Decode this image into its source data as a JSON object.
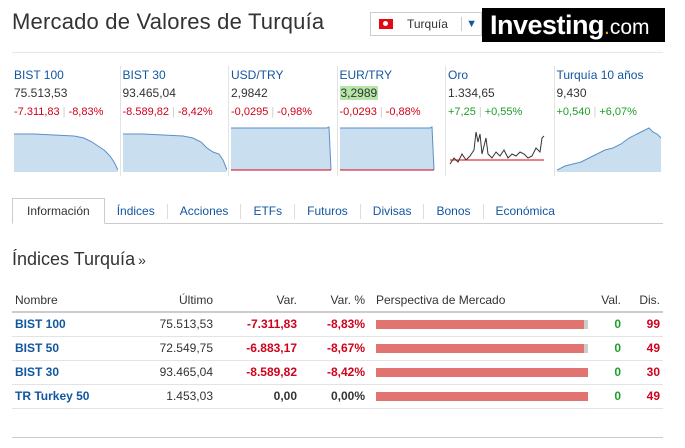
{
  "header": {
    "title": "Mercado de Valores de Turquía",
    "country": "Turquía",
    "logo_main": "Investing",
    "logo_suffix": "com"
  },
  "tiles": [
    {
      "name": "BIST 100",
      "value": "75.513,53",
      "change": "-7.311,83",
      "pct": "-8,83%",
      "direction": "down"
    },
    {
      "name": "BIST 30",
      "value": "93.465,04",
      "change": "-8.589,82",
      "pct": "-8,42%",
      "direction": "down"
    },
    {
      "name": "USD/TRY",
      "value": "2,9842",
      "change": "-0,0295",
      "pct": "-0,98%",
      "direction": "down"
    },
    {
      "name": "EUR/TRY",
      "value": "3,2989",
      "change": "-0,0293",
      "pct": "-0,88%",
      "direction": "down"
    },
    {
      "name": "Oro",
      "value": "1.334,65",
      "change": "+7,25",
      "pct": "+0,55%",
      "direction": "up"
    },
    {
      "name": "Turquía 10 años",
      "value": "9,430",
      "change": "+0,540",
      "pct": "+6,07%",
      "direction": "up"
    }
  ],
  "tabs": [
    "Información",
    "Índices",
    "Acciones",
    "ETFs",
    "Futuros",
    "Divisas",
    "Bonos",
    "Económica"
  ],
  "section": {
    "title": "Índices Turquía",
    "arrow": "»"
  },
  "table": {
    "headers": {
      "name": "Nombre",
      "last": "Último",
      "change": "Var.",
      "pct": "Var. %",
      "outlook": "Perspectiva de Mercado",
      "up": "Val.",
      "down": "Dis."
    },
    "rows": [
      {
        "name": "BIST 100",
        "last": "75.513,53",
        "change": "-7.311,83",
        "pct": "-8,83%",
        "up": "0",
        "down": "99",
        "outlook_up_fraction": 0.02
      },
      {
        "name": "BIST 50",
        "last": "72.549,75",
        "change": "-6.883,17",
        "pct": "-8,67%",
        "up": "0",
        "down": "49",
        "outlook_up_fraction": 0.02
      },
      {
        "name": "BIST 30",
        "last": "93.465,04",
        "change": "-8.589,82",
        "pct": "-8,42%",
        "up": "0",
        "down": "30",
        "outlook_up_fraction": 0
      },
      {
        "name": "TR Turkey 50",
        "last": "1.453,03",
        "change": "0,00",
        "pct": "0,00%",
        "up": "0",
        "down": "49",
        "outlook_up_fraction": 0
      }
    ]
  },
  "colors": {
    "negative": "#d0021b",
    "positive": "#1e9e2a",
    "link": "#1256a0",
    "sparkline_fill": "#c9dff0",
    "sparkline_line": "#5b8fc7",
    "bar_down": "#e17471",
    "bar_up": "#cccccc"
  }
}
